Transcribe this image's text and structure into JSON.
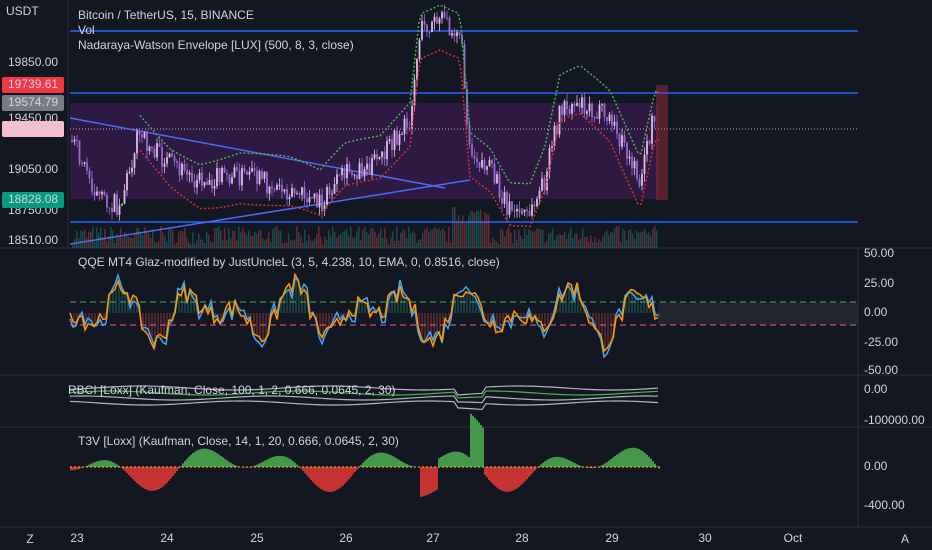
{
  "header": {
    "currency": "USDT",
    "title": "Bitcoin / TetherUS, 15, BINANCE",
    "indicators": [
      "Vol",
      "Nadaraya-Watson Envelope [LUX] (500, 8, 3, close)"
    ]
  },
  "main_pane": {
    "price_labels": [
      "19850.00",
      "19450.00",
      "19050.00",
      "18750.00",
      "18510.00"
    ],
    "badges": [
      {
        "text": "19739.61",
        "color": "#f23645"
      },
      {
        "text": "19574.79",
        "color": "#787b86"
      },
      {
        "text": "19378.27",
        "color": "#f8bbd0"
      },
      {
        "text": "18828.08",
        "color": "#089981"
      }
    ]
  },
  "qqe_pane": {
    "title": "QQE MT4 Glaz-modified by JustUncleL (3, 5, 4.238, 10, EMA, 0, 0.8516, close)",
    "axis_labels": [
      "50.00",
      "25.00",
      "0.00",
      "-25.00",
      "-50.00"
    ]
  },
  "rbci_pane": {
    "title": "RBCI [Loxx] (Kaufman, Close, 100, 1, 2, 0.666, 0.0645, 2, 30)",
    "axis_labels": [
      "0.00",
      "-100000.00"
    ]
  },
  "t3v_pane": {
    "title": "T3V [Loxx] (Kaufman, Close, 14, 1, 20, 0.666, 0.0645, 2, 30)",
    "axis_labels": [
      "0.00",
      "-400.00"
    ]
  },
  "time_axis": [
    "23",
    "24",
    "25",
    "26",
    "27",
    "28",
    "29",
    "30",
    "Oct"
  ],
  "footer": {
    "left": "Z",
    "right": "A"
  }
}
